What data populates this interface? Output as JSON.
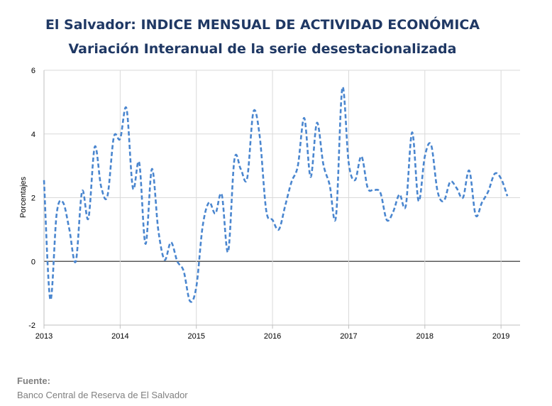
{
  "header": {
    "title": "El Salvador: INDICE MENSUAL DE ACTIVIDAD ECONÓMICA",
    "subtitle": "Variación Interanual de la serie desestacionalizada"
  },
  "footer": {
    "source_label": "Fuente:",
    "source_text": "Banco Central de Reserva de El Salvador"
  },
  "chart_data": {
    "type": "line",
    "title": "El Salvador: INDICE MENSUAL DE ACTIVIDAD ECONÓMICA",
    "subtitle": "Variación Interanual de la serie desestacionalizada",
    "xlabel": "",
    "ylabel": "Porcentajes",
    "xlim": [
      2013,
      2019.25
    ],
    "ylim": [
      -2,
      6
    ],
    "yticks": [
      -2,
      0,
      2,
      4,
      6
    ],
    "xticks": [
      2013,
      2014,
      2015,
      2016,
      2017,
      2018,
      2019
    ],
    "grid": true,
    "legend": "none",
    "line_color": "#4a86cf",
    "line_style": "dashed",
    "series": [
      {
        "values": [
          [
            2013.0,
            2.55
          ],
          [
            2013.083,
            -1.2
          ],
          [
            2013.167,
            1.5
          ],
          [
            2013.25,
            1.85
          ],
          [
            2013.333,
            1.0
          ],
          [
            2013.417,
            0.0
          ],
          [
            2013.5,
            2.2
          ],
          [
            2013.583,
            1.35
          ],
          [
            2013.667,
            3.6
          ],
          [
            2013.75,
            2.35
          ],
          [
            2013.833,
            2.05
          ],
          [
            2013.917,
            3.9
          ],
          [
            2014.0,
            3.85
          ],
          [
            2014.083,
            4.8
          ],
          [
            2014.167,
            2.3
          ],
          [
            2014.25,
            3.1
          ],
          [
            2014.333,
            0.55
          ],
          [
            2014.417,
            2.9
          ],
          [
            2014.5,
            1.0
          ],
          [
            2014.583,
            0.05
          ],
          [
            2014.667,
            0.6
          ],
          [
            2014.75,
            0.0
          ],
          [
            2014.833,
            -0.3
          ],
          [
            2014.917,
            -1.25
          ],
          [
            2015.0,
            -0.8
          ],
          [
            2015.083,
            1.1
          ],
          [
            2015.167,
            1.85
          ],
          [
            2015.25,
            1.5
          ],
          [
            2015.333,
            2.1
          ],
          [
            2015.417,
            0.3
          ],
          [
            2015.5,
            3.2
          ],
          [
            2015.583,
            2.9
          ],
          [
            2015.667,
            2.6
          ],
          [
            2015.75,
            4.7
          ],
          [
            2015.833,
            3.9
          ],
          [
            2015.917,
            1.6
          ],
          [
            2016.0,
            1.3
          ],
          [
            2016.083,
            1.0
          ],
          [
            2016.167,
            1.75
          ],
          [
            2016.25,
            2.5
          ],
          [
            2016.333,
            3.0
          ],
          [
            2016.417,
            4.5
          ],
          [
            2016.5,
            2.65
          ],
          [
            2016.583,
            4.35
          ],
          [
            2016.667,
            3.05
          ],
          [
            2016.75,
            2.4
          ],
          [
            2016.833,
            1.4
          ],
          [
            2016.917,
            5.45
          ],
          [
            2017.0,
            3.1
          ],
          [
            2017.083,
            2.55
          ],
          [
            2017.167,
            3.3
          ],
          [
            2017.25,
            2.3
          ],
          [
            2017.333,
            2.25
          ],
          [
            2017.417,
            2.15
          ],
          [
            2017.5,
            1.3
          ],
          [
            2017.583,
            1.55
          ],
          [
            2017.667,
            2.1
          ],
          [
            2017.75,
            1.75
          ],
          [
            2017.833,
            4.05
          ],
          [
            2017.917,
            1.9
          ],
          [
            2018.0,
            3.3
          ],
          [
            2018.083,
            3.65
          ],
          [
            2018.167,
            2.2
          ],
          [
            2018.25,
            1.9
          ],
          [
            2018.333,
            2.5
          ],
          [
            2018.417,
            2.3
          ],
          [
            2018.5,
            2.0
          ],
          [
            2018.583,
            2.85
          ],
          [
            2018.667,
            1.45
          ],
          [
            2018.75,
            1.85
          ],
          [
            2018.833,
            2.2
          ],
          [
            2018.917,
            2.75
          ],
          [
            2019.0,
            2.6
          ],
          [
            2019.083,
            2.05
          ]
        ]
      }
    ]
  }
}
